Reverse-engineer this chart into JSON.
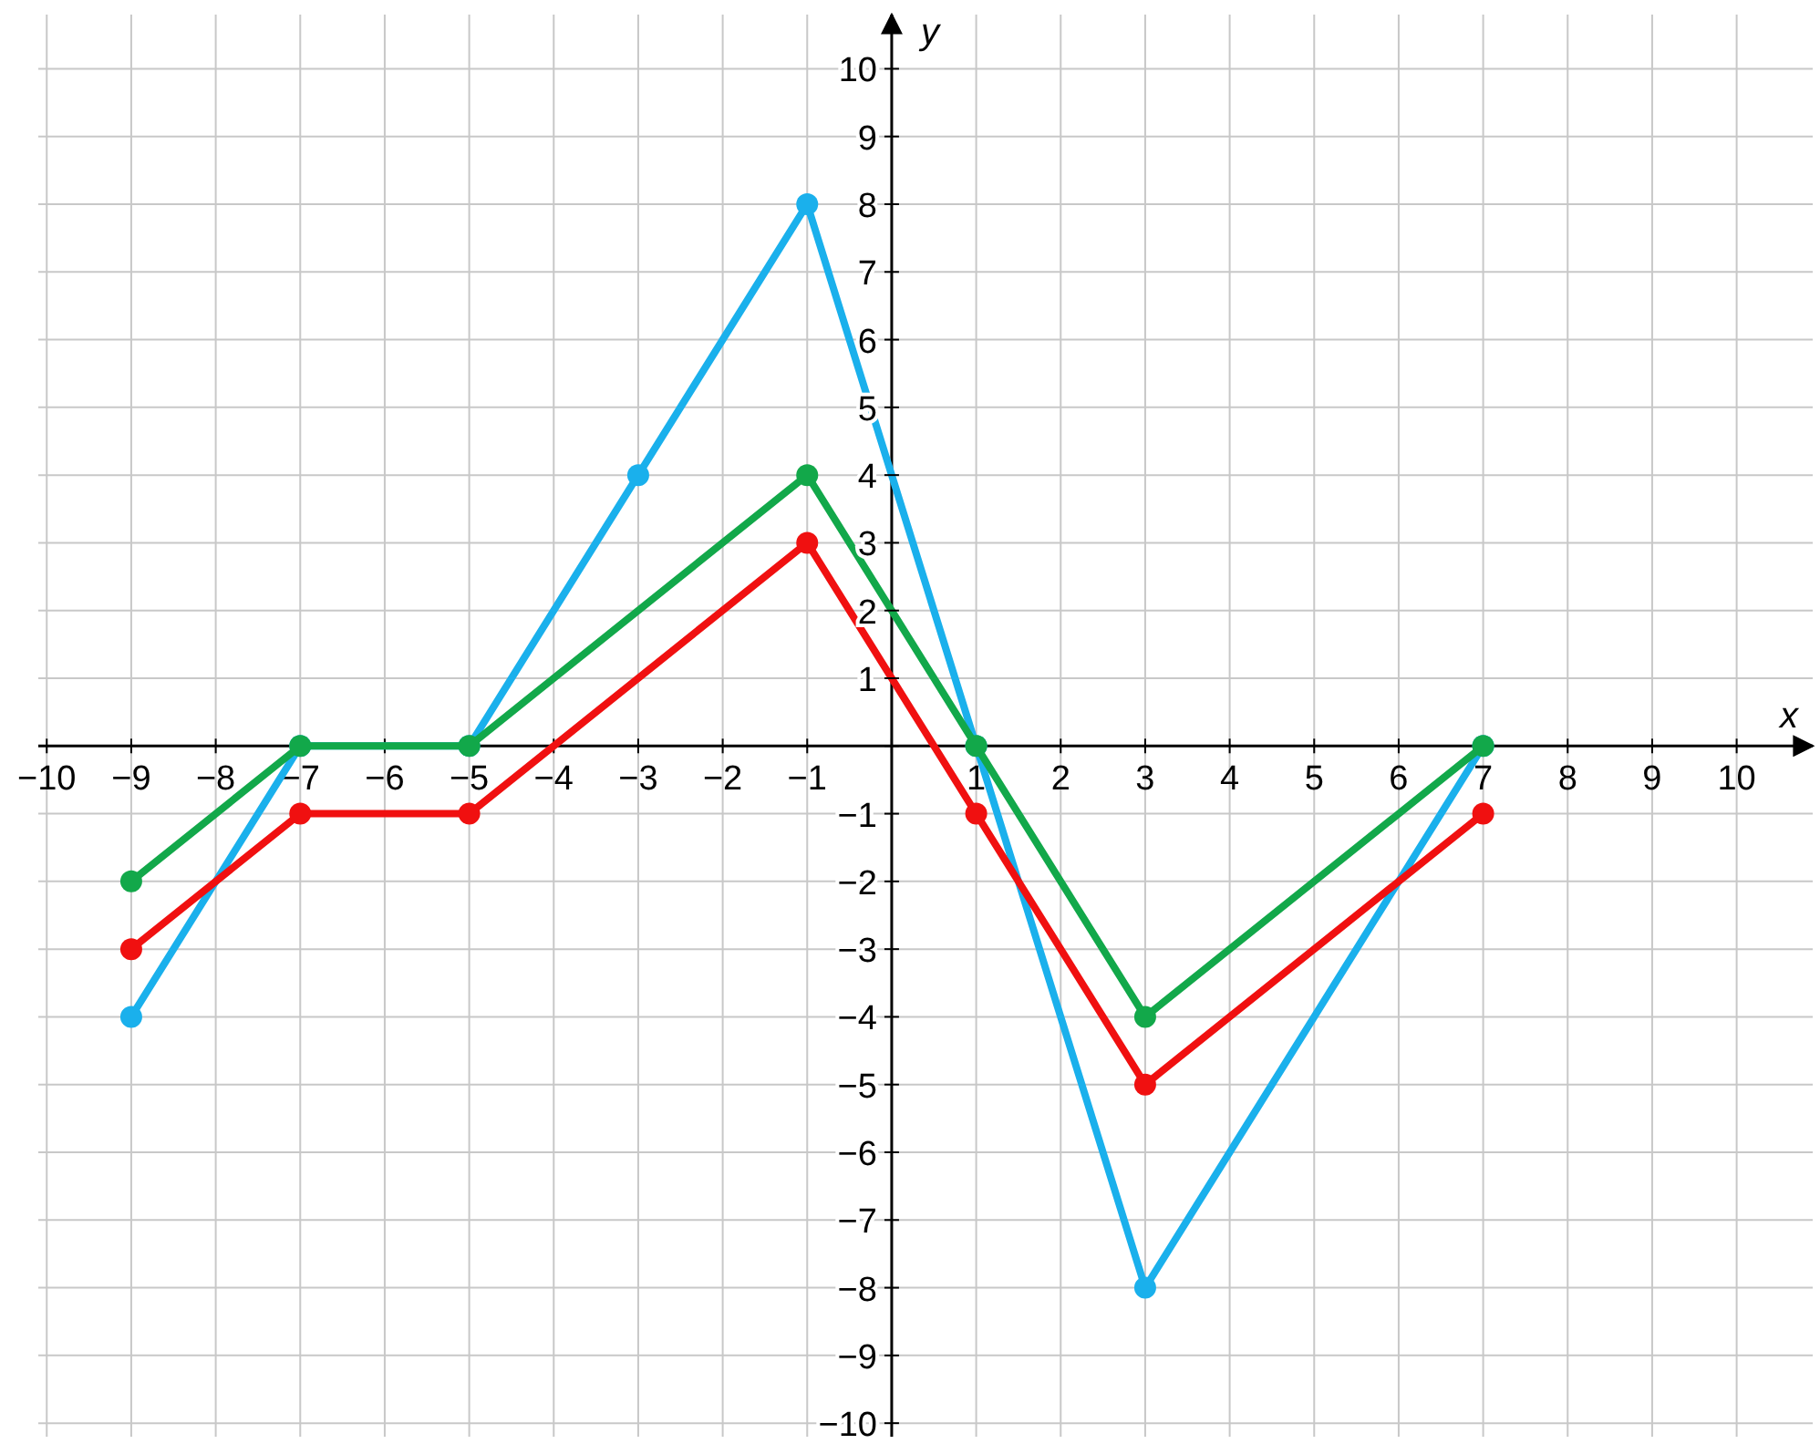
{
  "chart_data": {
    "type": "line",
    "xlabel": "x",
    "ylabel": "y",
    "series": [
      {
        "color": "#1ab0ec",
        "x": [
          -9,
          -7,
          -5,
          -3,
          -1,
          1,
          3,
          7
        ],
        "values": [
          -4,
          0,
          0,
          4,
          8,
          0,
          -8,
          0
        ]
      },
      {
        "color": "#12a84a",
        "x": [
          -9,
          -7,
          -5,
          -1,
          1,
          3,
          7
        ],
        "values": [
          -2,
          0,
          0,
          4,
          0,
          -4,
          0
        ]
      },
      {
        "color": "#f01010",
        "x": [
          -9,
          -7,
          -5,
          -1,
          1,
          3,
          7
        ],
        "values": [
          -3,
          -1,
          -1,
          3,
          -1,
          -5,
          -1
        ]
      }
    ],
    "xlim": [
      -10.1,
      10.9
    ],
    "ylim": [
      -10.2,
      10.8
    ],
    "xticks": [
      -10,
      -9,
      -8,
      -7,
      -6,
      -5,
      -4,
      -3,
      -2,
      -1,
      {
        "value": 0,
        "label": null
      },
      1,
      2,
      3,
      4,
      5,
      6,
      7,
      8,
      9,
      10
    ],
    "yticks": [
      -10,
      -9,
      -8,
      -7,
      -6,
      -5,
      -4,
      -3,
      -2,
      -1,
      {
        "value": 0,
        "label": null
      },
      1,
      2,
      3,
      4,
      5,
      6,
      7,
      8,
      9,
      10
    ],
    "grid": true,
    "marker": "circle",
    "line_style": "solid"
  }
}
